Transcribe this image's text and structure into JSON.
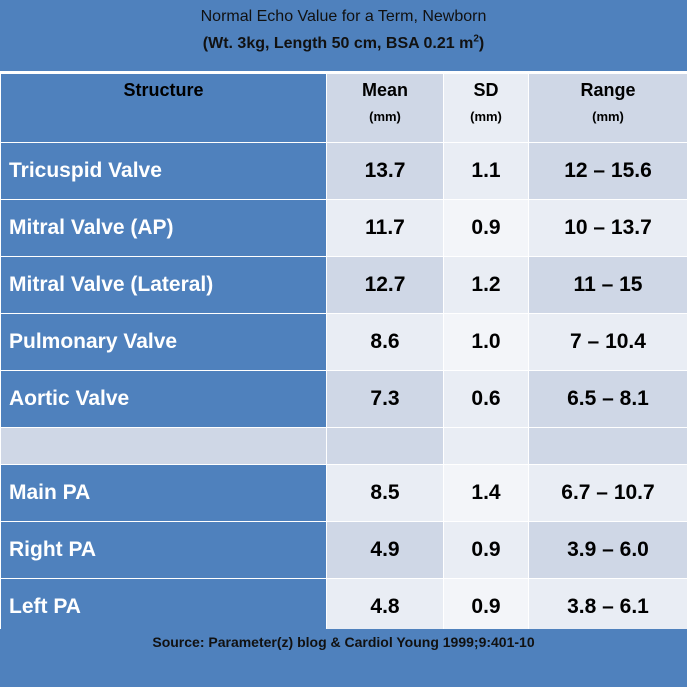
{
  "title": {
    "line1": "Normal  Echo Value for a Term, Newborn",
    "line2_prefix": "(Wt. 3kg, Length 50 cm, BSA 0.21 m",
    "line2_sup": "2",
    "line2_suffix": ")"
  },
  "headers": {
    "structure": "Structure",
    "mean": "Mean",
    "mean_unit": "(mm)",
    "sd": "SD",
    "sd_unit": "(mm)",
    "range": "Range",
    "range_unit": "(mm)"
  },
  "rows": [
    {
      "structure": "Tricuspid Valve",
      "mean": "13.7",
      "sd": "1.1",
      "range": "12 – 15.6"
    },
    {
      "structure": "Mitral Valve (AP)",
      "mean": "11.7",
      "sd": "0.9",
      "range": "10 – 13.7"
    },
    {
      "structure": "Mitral Valve (Lateral)",
      "mean": "12.7",
      "sd": "1.2",
      "range": "11 – 15"
    },
    {
      "structure": "Pulmonary Valve",
      "mean": "8.6",
      "sd": "1.0",
      "range": "7 – 10.4"
    },
    {
      "structure": "Aortic Valve",
      "mean": "7.3",
      "sd": "0.6",
      "range": "6.5 – 8.1"
    },
    {
      "structure": "Main PA",
      "mean": "8.5",
      "sd": "1.4",
      "range": "6.7 – 10.7"
    },
    {
      "structure": "Right PA",
      "mean": "4.9",
      "sd": "0.9",
      "range": "3.9 – 6.0"
    },
    {
      "structure": "Left PA",
      "mean": "4.8",
      "sd": "0.9",
      "range": "3.8 – 6.1"
    }
  ],
  "source": "Source: Parameter(z) blog & Cardiol Young 1999;9:401-10",
  "colors": {
    "accent": "#4f81bd",
    "band_dark": "#cfd7e6",
    "band_light": "#e9edf4"
  }
}
